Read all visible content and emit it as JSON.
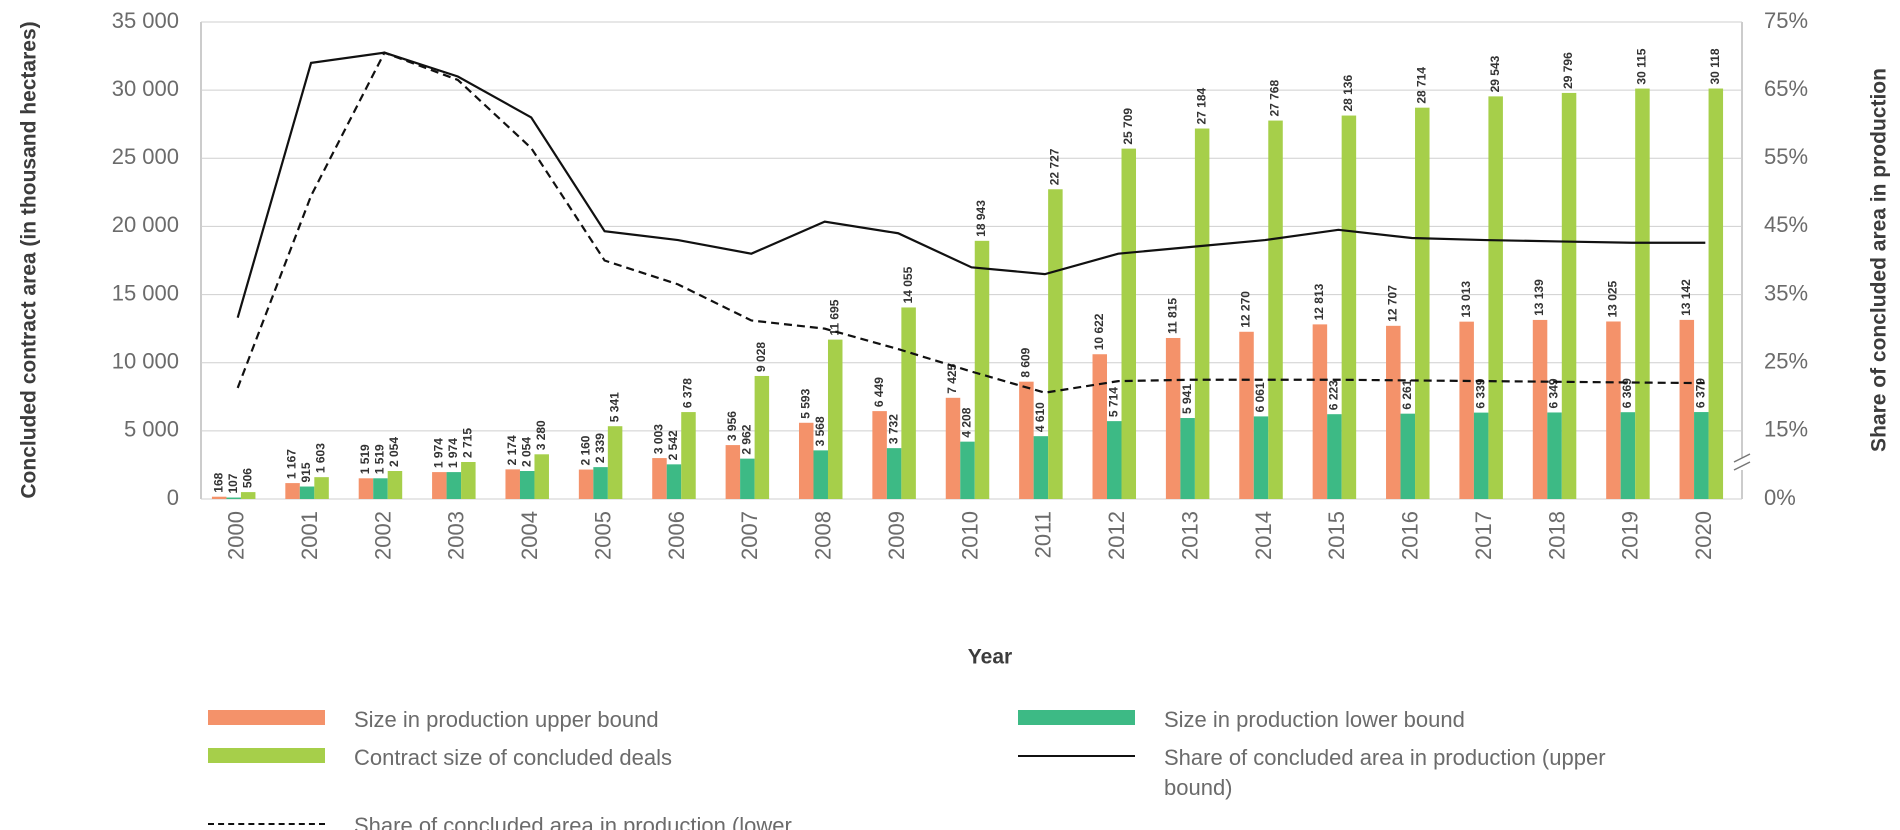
{
  "chart_data": {
    "type": "bar",
    "x_label": "Year",
    "y_label": "Concluded contract area (in thousand hectares)",
    "y2_label": "Share of concluded area in production",
    "categories": [
      "2000",
      "2001",
      "2002",
      "2003",
      "2004",
      "2005",
      "2006",
      "2007",
      "2008",
      "2009",
      "2010",
      "2011",
      "2012",
      "2013",
      "2014",
      "2015",
      "2016",
      "2017",
      "2018",
      "2019",
      "2020"
    ],
    "ylim": [
      0,
      35000
    ],
    "yticks": [
      0,
      {
        "value": 5000,
        "label": "5 000"
      },
      {
        "value": 10000,
        "label": "10 000"
      },
      {
        "value": 15000,
        "label": "15 000"
      },
      {
        "value": 20000,
        "label": "20 000"
      },
      {
        "value": 25000,
        "label": "25 000"
      },
      {
        "value": 30000,
        "label": "30 000"
      },
      {
        "value": 35000,
        "label": "35 000"
      }
    ],
    "y2lim": [
      5,
      75
    ],
    "y2ticks": [
      {
        "value": 15,
        "label": "15%"
      },
      {
        "value": 25,
        "label": "25%"
      },
      {
        "value": 35,
        "label": "35%"
      },
      {
        "value": 45,
        "label": "45%"
      },
      {
        "value": 55,
        "label": "55%"
      },
      {
        "value": 65,
        "label": "65%"
      },
      {
        "value": 75,
        "label": "75%"
      }
    ],
    "y2_break_label": "0%",
    "grid": true,
    "series": [
      {
        "name": "Size in production upper bound",
        "type": "bar",
        "color": "#f4926a",
        "values": [
          168,
          1167,
          1519,
          1974,
          2174,
          2160,
          3003,
          3956,
          5593,
          6449,
          7425,
          8609,
          10622,
          11815,
          12270,
          12813,
          12707,
          13013,
          13139,
          13025,
          13142
        ],
        "value_labels": [
          "168",
          "1 167",
          "1 519",
          "1 974",
          "2 174",
          "2 160",
          "3 003",
          "3 956",
          "5 593",
          "6 449",
          "7 425",
          "8 609",
          "10 622",
          "11 815",
          "12 270",
          "12 813",
          "12 707",
          "13 013",
          "13 139",
          "13 025",
          "13 142"
        ]
      },
      {
        "name": "Size in production lower bound",
        "type": "bar",
        "color": "#3dba85",
        "values": [
          107,
          915,
          1519,
          1974,
          2054,
          2339,
          2542,
          2962,
          3568,
          3732,
          4208,
          4610,
          5714,
          5941,
          6061,
          6223,
          6261,
          6339,
          6349,
          6369,
          6379
        ],
        "value_labels": [
          "107",
          "915",
          "1 519",
          "1 974",
          "2 054",
          "2 339",
          "2 542",
          "2 962",
          "3 568",
          "3 732",
          "4 208",
          "4 610",
          "5 714",
          "5 941",
          "6 061",
          "6 223",
          "6 261",
          "6 339",
          "6 349",
          "6 369",
          "6 379"
        ]
      },
      {
        "name": "Contract size of concluded deals",
        "type": "bar",
        "color": "#a6cf4a",
        "values": [
          506,
          1603,
          2054,
          2715,
          3280,
          5341,
          6378,
          9028,
          11695,
          14055,
          18943,
          22727,
          25709,
          27184,
          27768,
          28136,
          28714,
          29543,
          29796,
          30115,
          30118
        ],
        "value_labels": [
          "506",
          "1 603",
          "2 054",
          "2 715",
          "3 280",
          "5 341",
          "6 378",
          "9 028",
          "11 695",
          "14 055",
          "18 943",
          "22 727",
          "25 709",
          "27 184",
          "27 768",
          "28 136",
          "28 714",
          "29 543",
          "29 796",
          "30 115",
          "30 118"
        ]
      },
      {
        "name": "Share of concluded area in production (upper bound)",
        "type": "line",
        "axis": "y2",
        "color": "#111111",
        "dash": "solid",
        "values": [
          31.6,
          69,
          70.5,
          67,
          61,
          44.3,
          43,
          41,
          45.7,
          44,
          39,
          38,
          41,
          42,
          43,
          44.5,
          43.3,
          43,
          42.8,
          42.6,
          42.6
        ]
      },
      {
        "name": "Share of concluded area in production (lower bound)",
        "type": "line",
        "axis": "y2",
        "color": "#111111",
        "dash": "dashed",
        "values": [
          21.3,
          49.5,
          70.5,
          66.5,
          56.5,
          40,
          36.5,
          31.2,
          30,
          27,
          23.7,
          20.6,
          22.3,
          22.5,
          22.5,
          22.5,
          22.4,
          22.3,
          22.2,
          22.1,
          22
        ]
      }
    ]
  }
}
